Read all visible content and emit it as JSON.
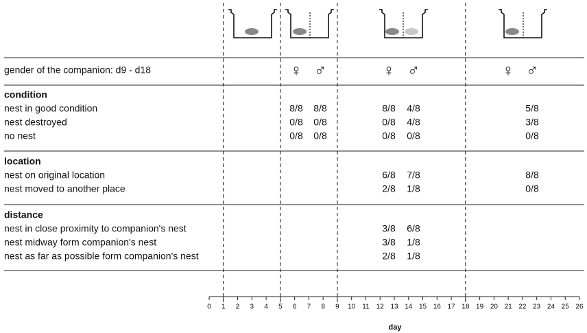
{
  "gender": {
    "label": "gender of the companion: d9 - d18",
    "symbols": [
      "♀",
      "♂",
      "♀",
      "♂",
      "♀",
      "♂"
    ]
  },
  "sections": [
    {
      "title": "condition",
      "rows": [
        {
          "label": "nest in good condition",
          "cells": [
            "8/8",
            "8/8",
            "8/8",
            "4/8",
            "5/8"
          ]
        },
        {
          "label": "nest destroyed",
          "cells": [
            "0/8",
            "0/8",
            "0/8",
            "4/8",
            "3/8"
          ]
        },
        {
          "label": "no nest",
          "cells": [
            "0/8",
            "0/8",
            "0/8",
            "0/8",
            "0/8"
          ]
        }
      ]
    },
    {
      "title": "location",
      "rows": [
        {
          "label": "nest on original location",
          "cells": [
            null,
            null,
            "6/8",
            "7/8",
            "8/8"
          ]
        },
        {
          "label": "nest moved to another place",
          "cells": [
            null,
            null,
            "2/8",
            "1/8",
            "0/8"
          ]
        }
      ]
    },
    {
      "title": "distance",
      "rows": [
        {
          "label": "nest in close proximity to companion's nest",
          "cells": [
            null,
            null,
            "3/8",
            "6/8",
            null
          ]
        },
        {
          "label": "nest midway form companion's nest",
          "cells": [
            null,
            null,
            "3/8",
            "1/8",
            null
          ]
        },
        {
          "label": "nest as far as possible form companion's nest",
          "cells": [
            null,
            null,
            "2/8",
            "1/8",
            null
          ]
        }
      ]
    }
  ],
  "axis": {
    "label": "day",
    "xlim": [
      0,
      26
    ],
    "xticks": [
      0,
      1,
      2,
      3,
      4,
      5,
      6,
      7,
      8,
      9,
      10,
      11,
      12,
      13,
      14,
      15,
      16,
      17,
      18,
      19,
      20,
      21,
      22,
      23,
      24,
      25,
      26
    ],
    "dividers": [
      1,
      5,
      9,
      18
    ]
  }
}
